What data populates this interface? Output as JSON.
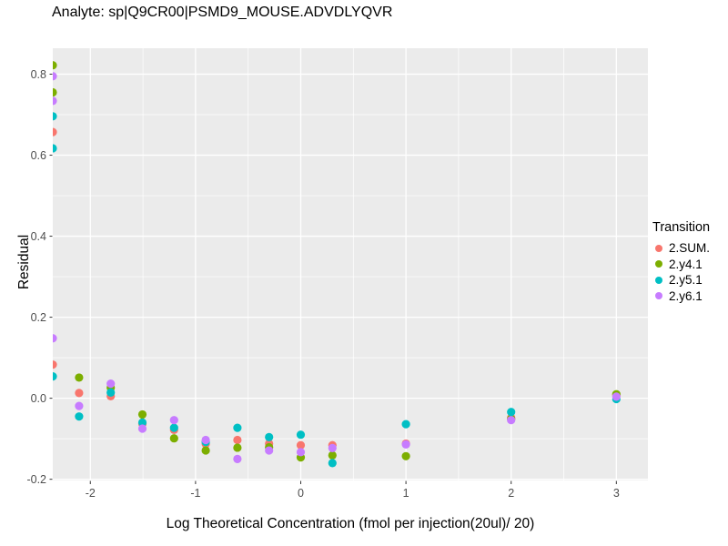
{
  "title": "Analyte: sp|Q9CR00|PSMD9_MOUSE.ADVDLYQVR",
  "chart_data": {
    "type": "scatter",
    "title": "Analyte: sp|Q9CR00|PSMD9_MOUSE.ADVDLYQVR",
    "xlabel": "Log Theoretical Concentration (fmol per injection(20ul)/ 20)",
    "ylabel": "Residual",
    "xlim": [
      -2.357,
      3.3
    ],
    "ylim": [
      -0.203,
      0.864
    ],
    "xticks": {
      "values": [
        -2,
        -1,
        0,
        1,
        2,
        3
      ],
      "labels": [
        "-2",
        "-1",
        "0",
        "1",
        "2",
        "3"
      ]
    },
    "yticks": {
      "values": [
        -0.2,
        0.0,
        0.2,
        0.4,
        0.6,
        0.8
      ],
      "labels": [
        "-0.2",
        "0.0",
        "0.2",
        "0.4",
        "0.6",
        "0.8"
      ]
    },
    "x_minor": [
      -1.5,
      -0.5,
      0.5,
      1.5,
      2.5
    ],
    "y_minor": [
      -0.1,
      0.1,
      0.3,
      0.5,
      0.7
    ],
    "grid": true,
    "panel_bg": "#EBEBEB",
    "grid_color": "#FFFFFF",
    "tick_color": "#333333",
    "tick_label_color": "#4D4D4D",
    "legend_title": "Transition",
    "legend_position": "right",
    "series": [
      {
        "name": "2.SUM.",
        "color": "#F8766D",
        "points": [
          [
            -2.408,
            0.657
          ],
          [
            -2.408,
            0.083
          ],
          [
            -2.107,
            0.013
          ],
          [
            -1.806,
            0.005
          ],
          [
            -1.505,
            -0.063
          ],
          [
            -1.204,
            -0.078
          ],
          [
            -0.903,
            -0.113
          ],
          [
            -0.602,
            -0.103
          ],
          [
            -0.301,
            -0.112
          ],
          [
            0,
            -0.116
          ],
          [
            0.301,
            -0.116
          ],
          [
            1,
            -0.112
          ],
          [
            2,
            -0.048
          ],
          [
            3,
            0.008
          ]
        ]
      },
      {
        "name": "2.y4.1",
        "color": "#7CAE00",
        "points": [
          [
            -2.408,
            0.822
          ],
          [
            -2.408,
            0.755
          ],
          [
            -2.107,
            0.051
          ],
          [
            -1.806,
            0.026
          ],
          [
            -1.505,
            -0.04
          ],
          [
            -1.204,
            -0.099
          ],
          [
            -0.903,
            -0.129
          ],
          [
            -0.602,
            -0.122
          ],
          [
            -0.301,
            -0.121
          ],
          [
            0,
            -0.146
          ],
          [
            0.301,
            -0.141
          ],
          [
            1,
            -0.143
          ],
          [
            2,
            -0.051
          ],
          [
            3,
            0.01
          ]
        ]
      },
      {
        "name": "2.y5.1",
        "color": "#00BFC4",
        "points": [
          [
            -2.408,
            0.696
          ],
          [
            -2.408,
            0.617
          ],
          [
            -2.408,
            0.054
          ],
          [
            -2.107,
            -0.045
          ],
          [
            -1.806,
            0.014
          ],
          [
            -1.505,
            -0.06
          ],
          [
            -1.204,
            -0.073
          ],
          [
            -0.903,
            -0.108
          ],
          [
            -0.602,
            -0.073
          ],
          [
            -0.301,
            -0.096
          ],
          [
            0,
            -0.09
          ],
          [
            0.301,
            -0.16
          ],
          [
            1,
            -0.064
          ],
          [
            2,
            -0.034
          ],
          [
            3,
            -0.002
          ]
        ]
      },
      {
        "name": "2.y6.1",
        "color": "#C77CFF",
        "points": [
          [
            -2.408,
            0.795
          ],
          [
            -2.408,
            0.734
          ],
          [
            -2.408,
            0.148
          ],
          [
            -2.107,
            -0.019
          ],
          [
            -1.806,
            0.036
          ],
          [
            -1.505,
            -0.075
          ],
          [
            -1.204,
            -0.054
          ],
          [
            -0.903,
            -0.103
          ],
          [
            -0.602,
            -0.15
          ],
          [
            -0.301,
            -0.129
          ],
          [
            0,
            -0.133
          ],
          [
            0.301,
            -0.123
          ],
          [
            1,
            -0.114
          ],
          [
            2,
            -0.054
          ],
          [
            3,
            0.004
          ]
        ]
      }
    ]
  }
}
